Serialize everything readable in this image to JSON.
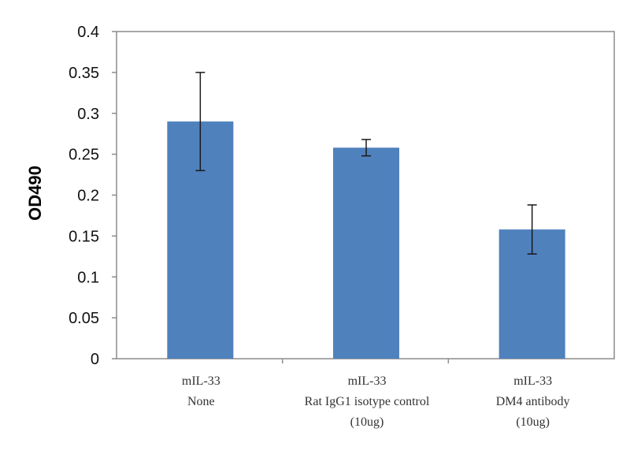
{
  "chart_data": {
    "type": "bar",
    "title": "",
    "xlabel": "",
    "ylabel": "OD490",
    "ylim": [
      0,
      0.4
    ],
    "yticks": [
      0,
      0.05,
      0.1,
      0.15,
      0.2,
      0.25,
      0.3,
      0.35,
      0.4
    ],
    "ytick_labels": [
      "0",
      "0.05",
      "0.1",
      "0.15",
      "0.2",
      "0.25",
      "0.3",
      "0.35",
      "0.4"
    ],
    "categories": [
      [
        "mIL-33",
        "None"
      ],
      [
        "mIL-33",
        "Rat IgG1 isotype control",
        "(10ug)"
      ],
      [
        "mIL-33",
        "DM4 antibody",
        "(10ug)"
      ]
    ],
    "values": [
      0.29,
      0.258,
      0.158
    ],
    "errors": [
      0.06,
      0.01,
      0.03
    ],
    "bar_color": "#4f81bd",
    "grid": false
  }
}
